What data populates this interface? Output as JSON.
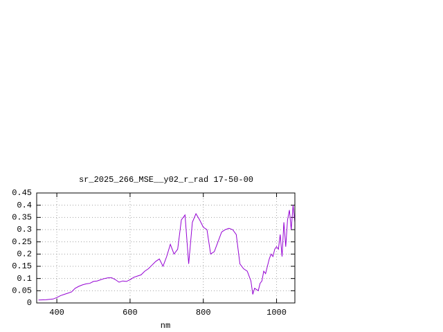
{
  "chart_data": {
    "type": "line",
    "title": "sr_2025_266_MSE__y02_r_rad 17-50-00",
    "x_label": "nm",
    "x": [
      350,
      370,
      390,
      400,
      410,
      420,
      430,
      440,
      450,
      460,
      470,
      480,
      490,
      500,
      510,
      520,
      530,
      540,
      550,
      560,
      570,
      580,
      590,
      600,
      610,
      620,
      630,
      640,
      650,
      660,
      670,
      680,
      690,
      700,
      710,
      720,
      730,
      740,
      750,
      760,
      770,
      780,
      790,
      800,
      810,
      820,
      830,
      840,
      850,
      860,
      870,
      880,
      890,
      900,
      910,
      920,
      930,
      935,
      940,
      950,
      955,
      960,
      965,
      970,
      975,
      980,
      985,
      990,
      995,
      1000,
      1005,
      1010,
      1015,
      1020,
      1025,
      1030,
      1035,
      1040,
      1045,
      1050
    ],
    "series": [
      {
        "color": "#9400d3",
        "values": [
          0.012,
          0.013,
          0.016,
          0.022,
          0.03,
          0.035,
          0.04,
          0.045,
          0.06,
          0.068,
          0.074,
          0.078,
          0.08,
          0.088,
          0.09,
          0.095,
          0.1,
          0.103,
          0.103,
          0.095,
          0.085,
          0.09,
          0.088,
          0.095,
          0.105,
          0.11,
          0.115,
          0.13,
          0.14,
          0.155,
          0.17,
          0.18,
          0.15,
          0.19,
          0.24,
          0.2,
          0.22,
          0.34,
          0.36,
          0.16,
          0.33,
          0.365,
          0.34,
          0.31,
          0.3,
          0.2,
          0.21,
          0.25,
          0.29,
          0.3,
          0.305,
          0.3,
          0.28,
          0.16,
          0.14,
          0.13,
          0.09,
          0.035,
          0.06,
          0.05,
          0.08,
          0.09,
          0.13,
          0.12,
          0.15,
          0.18,
          0.2,
          0.19,
          0.22,
          0.23,
          0.22,
          0.28,
          0.19,
          0.33,
          0.23,
          0.34,
          0.38,
          0.3,
          0.4,
          0.33
        ]
      }
    ],
    "xlim": [
      345,
      1050
    ],
    "xticks": [
      400,
      600,
      800,
      1000
    ],
    "ylim": [
      0,
      0.45
    ],
    "yticks": [
      0,
      0.05,
      0.1,
      0.15,
      0.2,
      0.25,
      0.3,
      0.35,
      0.4,
      0.45
    ],
    "grid": true
  }
}
